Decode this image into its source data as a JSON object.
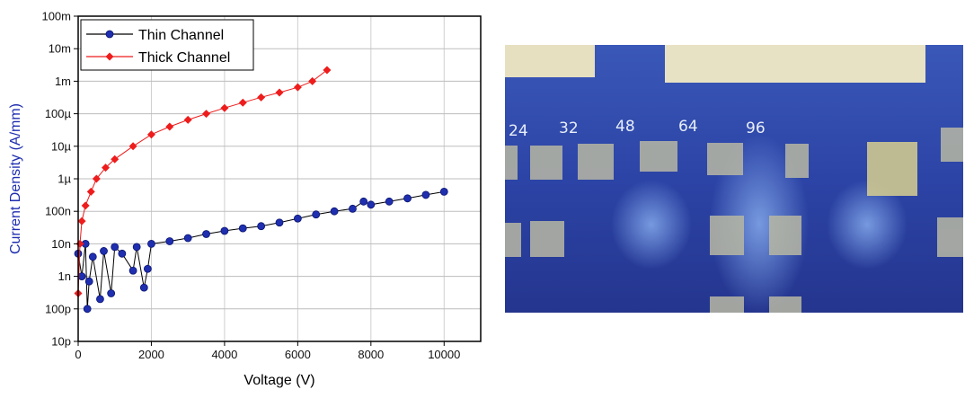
{
  "chart_data": {
    "type": "line",
    "x_label": "Voltage (V)",
    "y_label": "Current Density (A/mm)",
    "log_y": true,
    "grid": true,
    "legend": "upper-left",
    "xlim": [
      0,
      11000
    ],
    "xticks": [
      0,
      2000,
      4000,
      6000,
      8000,
      10000
    ],
    "ylim": [
      1e-11,
      0.1
    ],
    "yticks": [
      {
        "value": 1e-11,
        "label": "10p"
      },
      {
        "value": 1e-10,
        "label": "100p"
      },
      {
        "value": 1e-09,
        "label": "1n"
      },
      {
        "value": 1e-08,
        "label": "10n"
      },
      {
        "value": 1e-07,
        "label": "100n"
      },
      {
        "value": 1e-06,
        "label": "1µ"
      },
      {
        "value": 1e-05,
        "label": "10µ"
      },
      {
        "value": 0.0001,
        "label": "100µ"
      },
      {
        "value": 0.001,
        "label": "1m"
      },
      {
        "value": 0.01,
        "label": "10m"
      },
      {
        "value": 0.1,
        "label": "100m"
      }
    ],
    "series": [
      {
        "name": "Thin Channel",
        "color": "#1f2fb0",
        "marker": "circle",
        "x": [
          0,
          100,
          200,
          250,
          300,
          400,
          600,
          700,
          900,
          1000,
          1200,
          1500,
          1600,
          1800,
          1900,
          2000,
          2500,
          3000,
          3500,
          4000,
          4500,
          5000,
          5500,
          6000,
          6500,
          7000,
          7500,
          7800,
          8000,
          8500,
          9000,
          9500,
          10000
        ],
        "values": [
          5e-09,
          1e-09,
          1e-08,
          1e-10,
          7e-10,
          4e-09,
          2e-10,
          6e-09,
          3e-10,
          8e-09,
          5e-09,
          1.5e-09,
          8e-09,
          4.5e-10,
          1.7e-09,
          1e-08,
          1.2e-08,
          1.5e-08,
          2e-08,
          2.5e-08,
          3e-08,
          3.5e-08,
          4.5e-08,
          6e-08,
          8e-08,
          1e-07,
          1.2e-07,
          2e-07,
          1.6e-07,
          2e-07,
          2.5e-07,
          3.2e-07,
          4e-07
        ]
      },
      {
        "name": "Thick Channel",
        "color": "#ee1c1c",
        "marker": "diamond",
        "x": [
          0,
          50,
          100,
          200,
          350,
          500,
          750,
          1000,
          1500,
          2000,
          2500,
          3000,
          3500,
          4000,
          4500,
          5000,
          5500,
          6000,
          6400,
          6800
        ],
        "values": [
          3e-10,
          1e-08,
          5e-08,
          1.5e-07,
          4e-07,
          1e-06,
          2.2e-06,
          4e-06,
          1e-05,
          2.3e-05,
          4e-05,
          6.5e-05,
          0.0001,
          0.00015,
          0.00022,
          0.00032,
          0.00045,
          0.00065,
          0.001,
          0.0022
        ]
      }
    ]
  },
  "photo": {
    "labels": [
      "24",
      "32",
      "48",
      "64",
      "96"
    ]
  }
}
